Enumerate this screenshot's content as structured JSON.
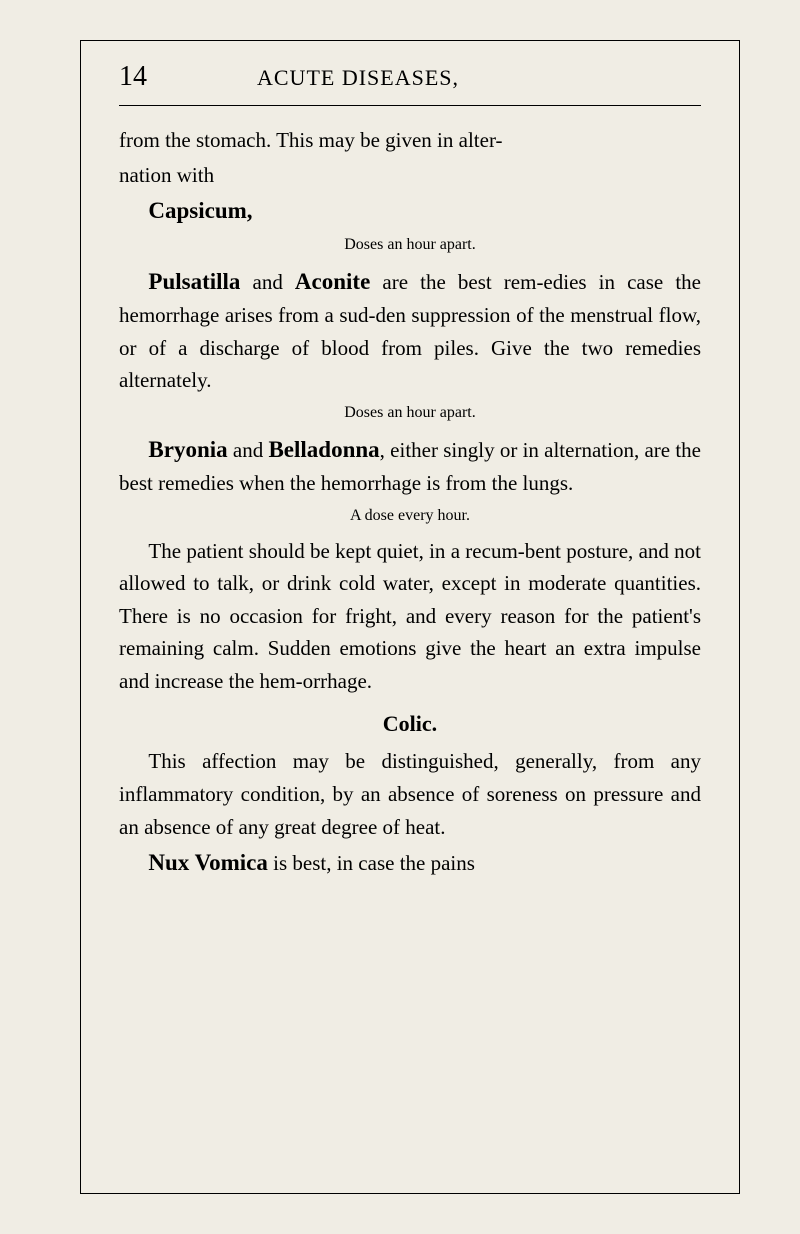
{
  "page": {
    "number": "14",
    "header": "ACUTE DISEASES,",
    "paragraphs": {
      "p1a": "from the stomach.  This may be given in alter-",
      "p1b": "nation with",
      "capsicum": "Capsicum,",
      "doses1": "Doses an hour apart.",
      "p2_bold1": "Pulsatilla",
      "p2_mid": " and ",
      "p2_bold2": "Aconite",
      "p2_rest": " are the best rem-edies in case the hemorrhage arises from a sud-den suppression of the menstrual flow, or of a discharge of blood from piles.  Give the two remedies alternately.",
      "doses2": "Doses an hour apart.",
      "p3_bold1": "Bryonia",
      "p3_mid": " and ",
      "p3_bold2": "Belladonna",
      "p3_rest": ", either singly or in alternation, are the best remedies when the hemorrhage is from the lungs.",
      "doses3": "A dose every hour.",
      "p4": "The patient should be kept quiet, in a recum-bent posture, and not allowed to talk, or drink cold water, except in moderate quantities. There is no occasion for fright, and every reason for the patient's remaining calm.  Sudden emotions give the heart an extra impulse and increase the hem-orrhage.",
      "colic_title": "Colic.",
      "p5": "This affection may be distinguished, generally, from any inflammatory condition, by an absence of soreness on pressure and an absence of any great degree of heat.",
      "p6_bold": "Nux Vomica",
      "p6_rest": " is best, in case the pains"
    }
  }
}
